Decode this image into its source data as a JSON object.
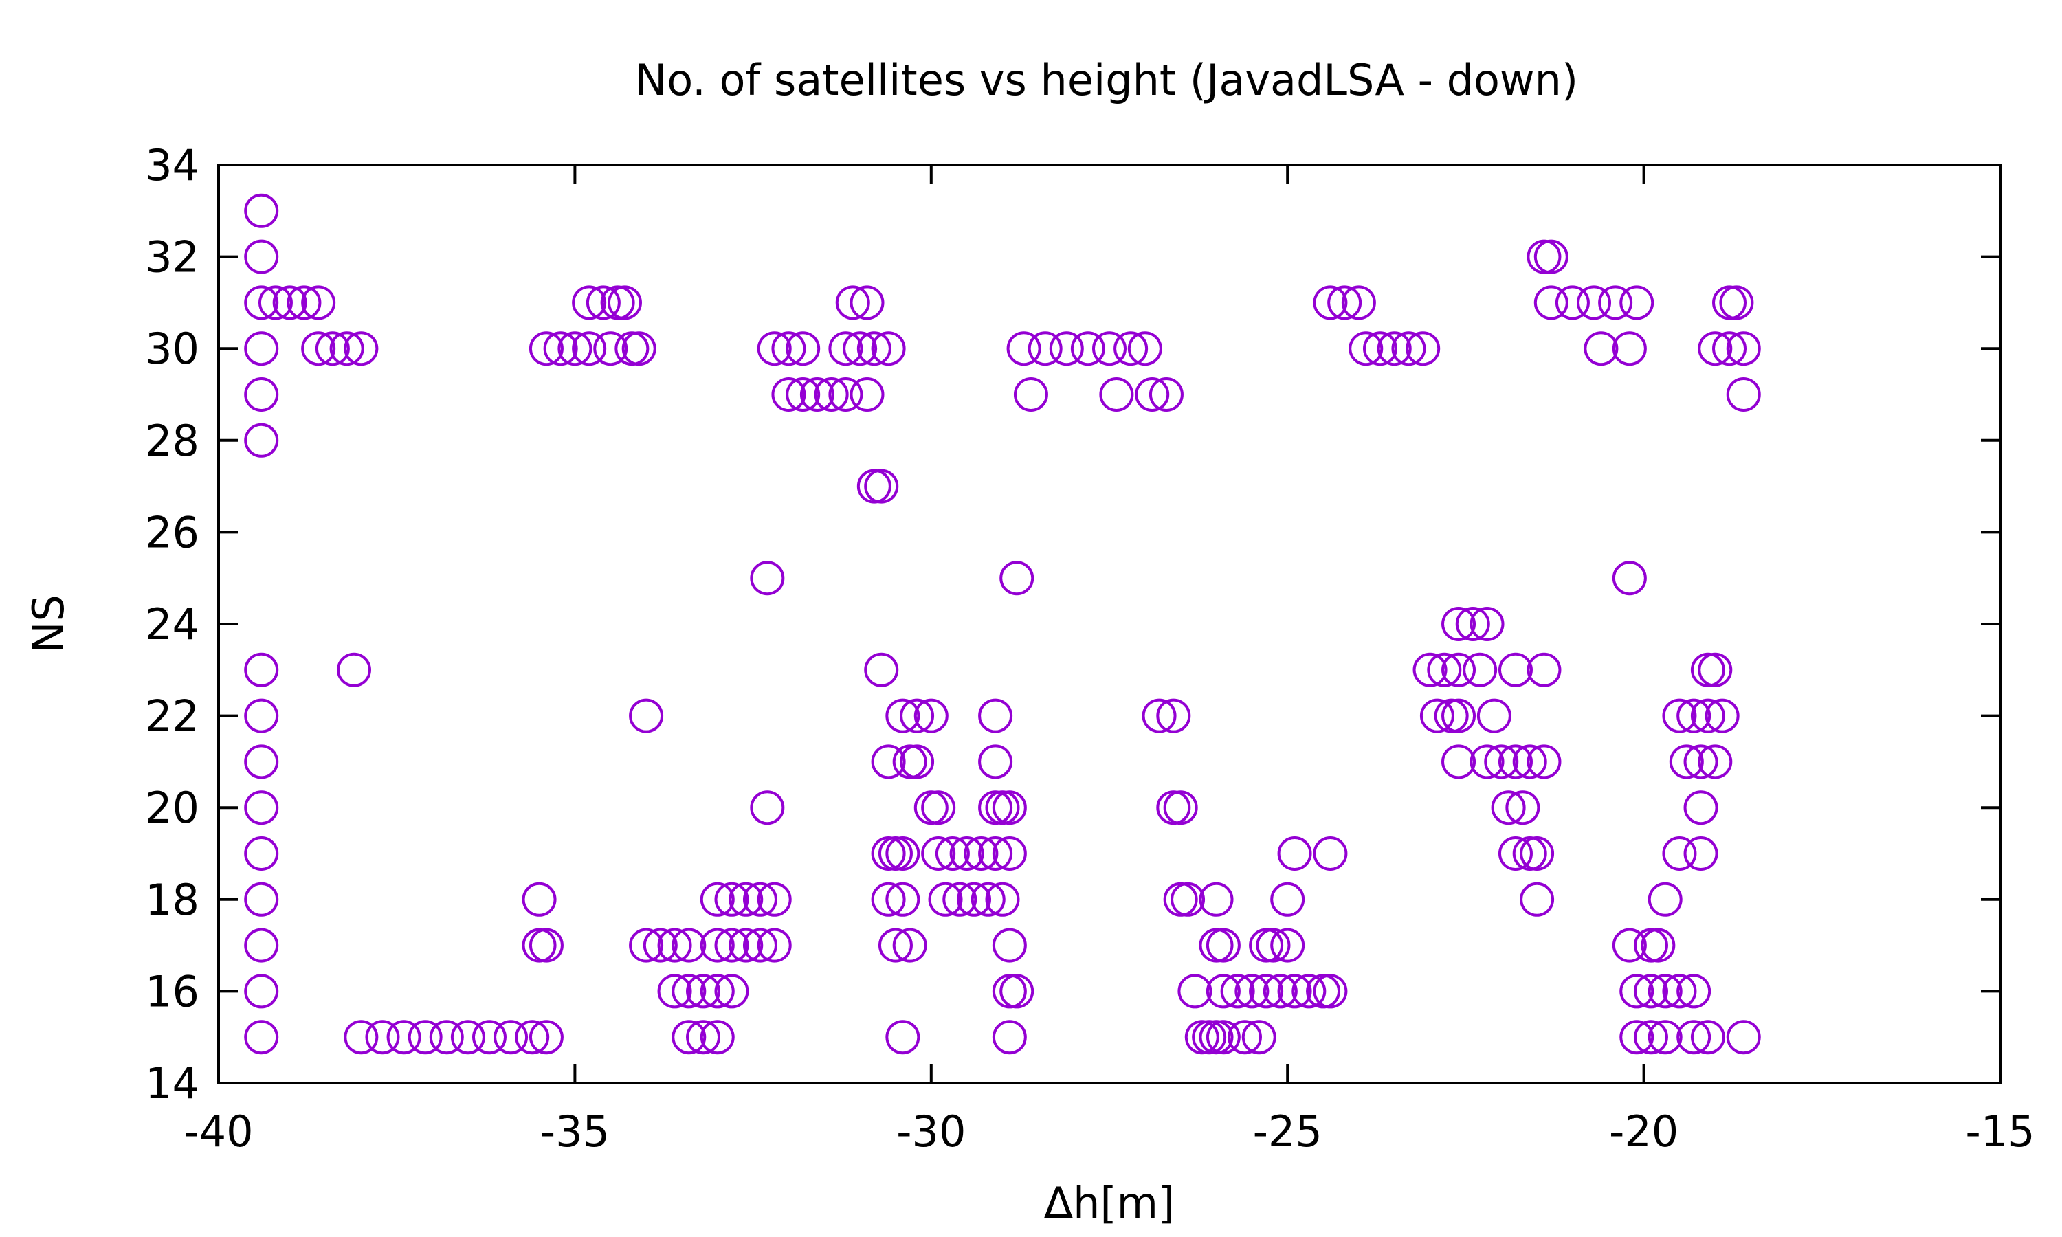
{
  "chart_data": {
    "type": "scatter",
    "title": "No. of satellites vs height (JavadLSA - down)",
    "xlabel": "Δh[m]",
    "ylabel": "NS",
    "xlim": [
      -40,
      -15
    ],
    "ylim": [
      14,
      34
    ],
    "xticks": [
      -40,
      -35,
      -30,
      -25,
      -20,
      -15
    ],
    "yticks": [
      14,
      16,
      18,
      20,
      22,
      24,
      26,
      28,
      30,
      32,
      34
    ],
    "grid": false,
    "legend": "none",
    "marker": "open-circle",
    "color": "#9400d3",
    "series": [
      {
        "points": [
          [
            -39.4,
            33
          ],
          [
            -39.4,
            32
          ],
          [
            -39.4,
            31
          ],
          [
            -39.2,
            31
          ],
          [
            -39.0,
            31
          ],
          [
            -38.8,
            31
          ],
          [
            -38.6,
            31
          ],
          [
            -39.4,
            30
          ],
          [
            -38.6,
            30
          ],
          [
            -38.4,
            30
          ],
          [
            -38.2,
            30
          ],
          [
            -38.0,
            30
          ],
          [
            -39.4,
            29
          ],
          [
            -39.4,
            28
          ],
          [
            -39.4,
            23
          ],
          [
            -39.4,
            22
          ],
          [
            -39.4,
            21
          ],
          [
            -39.4,
            20
          ],
          [
            -39.4,
            19
          ],
          [
            -39.4,
            18
          ],
          [
            -39.4,
            17
          ],
          [
            -39.4,
            16
          ],
          [
            -39.4,
            15
          ],
          [
            -38.1,
            23
          ],
          [
            -38.0,
            15
          ],
          [
            -37.7,
            15
          ],
          [
            -37.4,
            15
          ],
          [
            -37.1,
            15
          ],
          [
            -36.8,
            15
          ],
          [
            -36.5,
            15
          ],
          [
            -36.2,
            15
          ],
          [
            -35.9,
            15
          ],
          [
            -35.6,
            15
          ],
          [
            -35.4,
            15
          ],
          [
            -35.5,
            18
          ],
          [
            -35.5,
            17
          ],
          [
            -35.4,
            17
          ],
          [
            -35.4,
            30
          ],
          [
            -35.2,
            30
          ],
          [
            -35.0,
            30
          ],
          [
            -34.8,
            30
          ],
          [
            -34.5,
            30
          ],
          [
            -34.2,
            30
          ],
          [
            -34.1,
            30
          ],
          [
            -34.8,
            31
          ],
          [
            -34.6,
            31
          ],
          [
            -34.4,
            31
          ],
          [
            -34.3,
            31
          ],
          [
            -34.0,
            22
          ],
          [
            -34.0,
            17
          ],
          [
            -33.8,
            17
          ],
          [
            -33.6,
            17
          ],
          [
            -33.4,
            17
          ],
          [
            -33.6,
            16
          ],
          [
            -33.4,
            16
          ],
          [
            -33.2,
            16
          ],
          [
            -33.0,
            16
          ],
          [
            -32.8,
            16
          ],
          [
            -33.4,
            15
          ],
          [
            -33.2,
            15
          ],
          [
            -33.0,
            15
          ],
          [
            -33.0,
            18
          ],
          [
            -32.8,
            18
          ],
          [
            -32.6,
            18
          ],
          [
            -32.4,
            18
          ],
          [
            -32.2,
            18
          ],
          [
            -33.0,
            17
          ],
          [
            -32.8,
            17
          ],
          [
            -32.6,
            17
          ],
          [
            -32.4,
            17
          ],
          [
            -32.2,
            17
          ],
          [
            -32.3,
            20
          ],
          [
            -32.3,
            25
          ],
          [
            -32.2,
            30
          ],
          [
            -32.0,
            30
          ],
          [
            -31.8,
            30
          ],
          [
            -32.0,
            29
          ],
          [
            -31.8,
            29
          ],
          [
            -31.6,
            29
          ],
          [
            -31.4,
            29
          ],
          [
            -31.2,
            29
          ],
          [
            -30.9,
            29
          ],
          [
            -31.2,
            30
          ],
          [
            -31.0,
            30
          ],
          [
            -30.8,
            30
          ],
          [
            -30.6,
            30
          ],
          [
            -31.1,
            31
          ],
          [
            -30.9,
            31
          ],
          [
            -30.8,
            27
          ],
          [
            -30.7,
            27
          ],
          [
            -30.7,
            23
          ],
          [
            -30.6,
            21
          ],
          [
            -30.5,
            17
          ],
          [
            -30.3,
            17
          ],
          [
            -30.6,
            19
          ],
          [
            -30.5,
            19
          ],
          [
            -30.4,
            19
          ],
          [
            -30.6,
            18
          ],
          [
            -30.4,
            18
          ],
          [
            -30.4,
            22
          ],
          [
            -30.2,
            22
          ],
          [
            -30.0,
            22
          ],
          [
            -30.3,
            21
          ],
          [
            -30.2,
            21
          ],
          [
            -30.4,
            15
          ],
          [
            -30.0,
            20
          ],
          [
            -29.9,
            20
          ],
          [
            -29.9,
            19
          ],
          [
            -29.7,
            19
          ],
          [
            -29.5,
            19
          ],
          [
            -29.3,
            19
          ],
          [
            -29.1,
            19
          ],
          [
            -28.9,
            19
          ],
          [
            -29.8,
            18
          ],
          [
            -29.6,
            18
          ],
          [
            -29.4,
            18
          ],
          [
            -29.2,
            18
          ],
          [
            -29.0,
            18
          ],
          [
            -29.1,
            22
          ],
          [
            -29.1,
            21
          ],
          [
            -29.1,
            20
          ],
          [
            -29.0,
            20
          ],
          [
            -28.9,
            20
          ],
          [
            -28.9,
            17
          ],
          [
            -28.9,
            16
          ],
          [
            -28.8,
            16
          ],
          [
            -28.9,
            15
          ],
          [
            -28.8,
            25
          ],
          [
            -28.6,
            29
          ],
          [
            -28.7,
            30
          ],
          [
            -28.4,
            30
          ],
          [
            -28.1,
            30
          ],
          [
            -27.8,
            30
          ],
          [
            -27.5,
            30
          ],
          [
            -27.2,
            30
          ],
          [
            -27.0,
            30
          ],
          [
            -27.4,
            29
          ],
          [
            -26.9,
            29
          ],
          [
            -26.7,
            29
          ],
          [
            -26.8,
            22
          ],
          [
            -26.6,
            22
          ],
          [
            -26.6,
            20
          ],
          [
            -26.5,
            20
          ],
          [
            -26.5,
            18
          ],
          [
            -26.4,
            18
          ],
          [
            -26.0,
            18
          ],
          [
            -26.3,
            16
          ],
          [
            -26.2,
            15
          ],
          [
            -26.1,
            15
          ],
          [
            -26.0,
            15
          ],
          [
            -25.9,
            15
          ],
          [
            -26.0,
            17
          ],
          [
            -25.9,
            17
          ],
          [
            -25.9,
            16
          ],
          [
            -25.7,
            16
          ],
          [
            -25.5,
            16
          ],
          [
            -25.3,
            16
          ],
          [
            -25.1,
            16
          ],
          [
            -24.9,
            16
          ],
          [
            -24.7,
            16
          ],
          [
            -24.5,
            16
          ],
          [
            -24.4,
            16
          ],
          [
            -25.6,
            15
          ],
          [
            -25.4,
            15
          ],
          [
            -25.3,
            17
          ],
          [
            -25.2,
            17
          ],
          [
            -25.0,
            17
          ],
          [
            -25.0,
            18
          ],
          [
            -24.9,
            19
          ],
          [
            -24.4,
            19
          ],
          [
            -24.4,
            31
          ],
          [
            -24.2,
            31
          ],
          [
            -24.0,
            31
          ],
          [
            -23.9,
            30
          ],
          [
            -23.7,
            30
          ],
          [
            -23.5,
            30
          ],
          [
            -23.3,
            30
          ],
          [
            -23.1,
            30
          ],
          [
            -23.0,
            23
          ],
          [
            -22.8,
            23
          ],
          [
            -22.6,
            23
          ],
          [
            -22.9,
            22
          ],
          [
            -22.7,
            22
          ],
          [
            -22.6,
            22
          ],
          [
            -22.6,
            24
          ],
          [
            -22.4,
            24
          ],
          [
            -22.2,
            24
          ],
          [
            -22.6,
            21
          ],
          [
            -22.3,
            23
          ],
          [
            -21.8,
            23
          ],
          [
            -21.4,
            23
          ],
          [
            -22.1,
            22
          ],
          [
            -22.2,
            21
          ],
          [
            -22.0,
            21
          ],
          [
            -21.8,
            21
          ],
          [
            -21.6,
            21
          ],
          [
            -21.4,
            21
          ],
          [
            -21.9,
            20
          ],
          [
            -21.7,
            20
          ],
          [
            -21.8,
            19
          ],
          [
            -21.6,
            19
          ],
          [
            -21.5,
            19
          ],
          [
            -21.5,
            18
          ],
          [
            -21.4,
            32
          ],
          [
            -21.3,
            32
          ],
          [
            -21.3,
            31
          ],
          [
            -21.0,
            31
          ],
          [
            -20.7,
            31
          ],
          [
            -20.4,
            31
          ],
          [
            -20.1,
            31
          ],
          [
            -20.6,
            30
          ],
          [
            -20.2,
            30
          ],
          [
            -20.2,
            25
          ],
          [
            -20.2,
            17
          ],
          [
            -19.9,
            17
          ],
          [
            -19.8,
            17
          ],
          [
            -20.1,
            16
          ],
          [
            -19.9,
            16
          ],
          [
            -19.7,
            16
          ],
          [
            -19.5,
            16
          ],
          [
            -19.3,
            16
          ],
          [
            -20.1,
            15
          ],
          [
            -19.9,
            15
          ],
          [
            -19.7,
            15
          ],
          [
            -19.7,
            18
          ],
          [
            -19.5,
            22
          ],
          [
            -19.3,
            22
          ],
          [
            -19.1,
            22
          ],
          [
            -18.9,
            22
          ],
          [
            -19.4,
            21
          ],
          [
            -19.2,
            21
          ],
          [
            -19.0,
            21
          ],
          [
            -19.5,
            19
          ],
          [
            -19.2,
            19
          ],
          [
            -19.2,
            20
          ],
          [
            -19.1,
            23
          ],
          [
            -19.0,
            23
          ],
          [
            -19.3,
            15
          ],
          [
            -19.1,
            15
          ],
          [
            -18.6,
            15
          ],
          [
            -19.0,
            30
          ],
          [
            -18.8,
            30
          ],
          [
            -18.6,
            30
          ],
          [
            -18.8,
            31
          ],
          [
            -18.7,
            31
          ],
          [
            -18.6,
            29
          ]
        ]
      }
    ]
  }
}
